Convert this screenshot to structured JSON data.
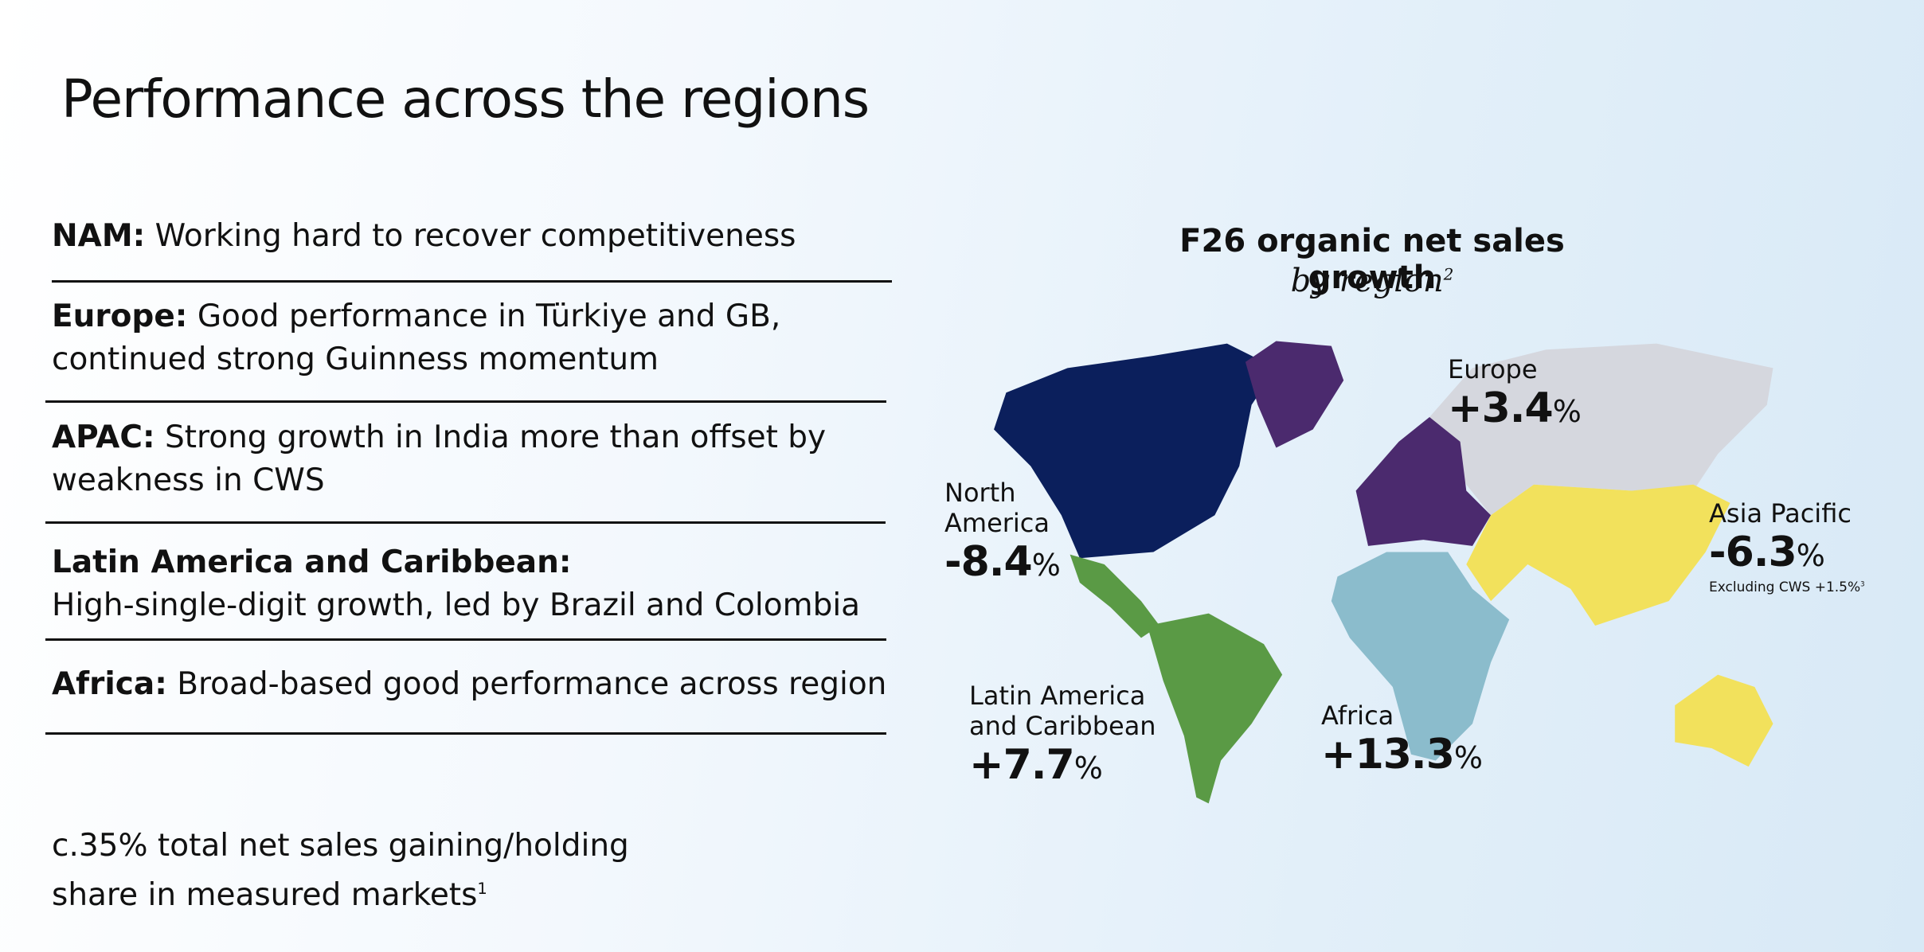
{
  "header": {
    "title": "Performance across the regions"
  },
  "highlights": [
    {
      "label": "NAM:",
      "lines": [
        "Working hard to recover competitiveness"
      ]
    },
    {
      "label": "Europe:",
      "lines": [
        "Good performance in Türkiye and GB,",
        "continued strong Guinness momentum"
      ]
    },
    {
      "label": "APAC:",
      "lines": [
        "Strong growth in India more than offset by",
        "weakness in CWS"
      ]
    },
    {
      "label": "Latin America and Caribbean:",
      "lines": [
        "High-single-digit growth, led by Brazil and Colombia"
      ]
    },
    {
      "label": "Africa:",
      "lines": [
        "Broad-based good performance across region"
      ]
    }
  ],
  "note": {
    "lines": [
      "c.35% total net sales gaining/holding",
      "share in measured markets"
    ],
    "ref": "1"
  },
  "map": {
    "title": "F26 organic net sales growth",
    "subtitle": "by region",
    "subtitle_ref": "2",
    "regions": [
      {
        "name": [
          "North",
          "America"
        ],
        "value": "-8.4",
        "unit": "%"
      },
      {
        "name": [
          "Europe"
        ],
        "value": "+3.4",
        "unit": "%"
      },
      {
        "name": [
          "Asia Pacific"
        ],
        "value": "-6.3",
        "unit": "%",
        "note": "Excluding CWS +1.5%",
        "note_ref": "3"
      },
      {
        "name": [
          "Latin America",
          "and Caribbean"
        ],
        "value": "+7.7",
        "unit": "%"
      },
      {
        "name": [
          "Africa"
        ],
        "value": "+13.3",
        "unit": "%"
      }
    ]
  }
}
